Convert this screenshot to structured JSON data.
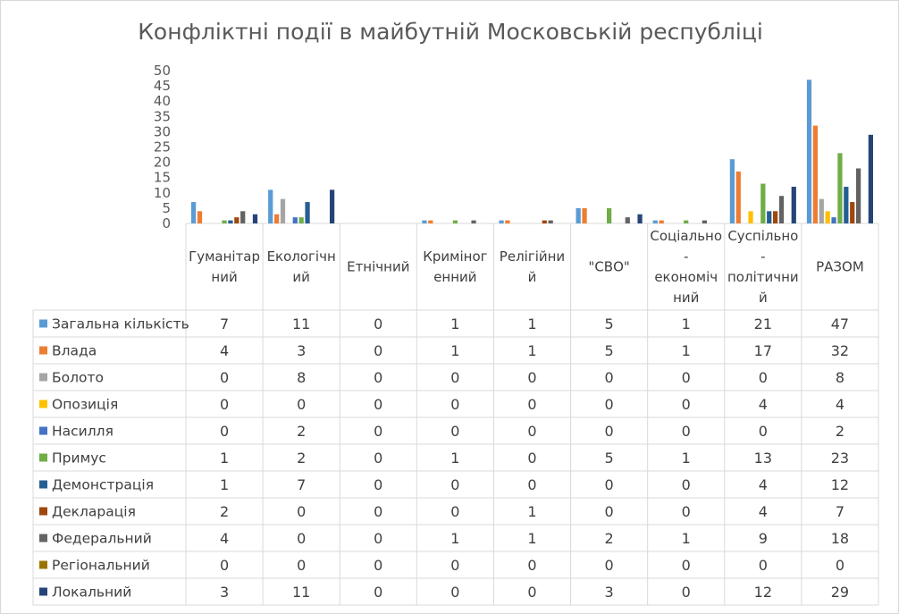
{
  "chart_data": {
    "type": "bar",
    "title": "Конфліктні події в майбутній Московській республіці",
    "xlabel": "",
    "ylabel": "",
    "ylim": [
      0,
      50
    ],
    "yticks": [
      0,
      5,
      10,
      15,
      20,
      25,
      30,
      35,
      40,
      45,
      50
    ],
    "grid": false,
    "legend": "data-table",
    "categories": [
      [
        "Гуманітар",
        "ний"
      ],
      [
        "Екологічн",
        "ий"
      ],
      [
        "Етнічний"
      ],
      [
        "Криміног",
        "енний"
      ],
      [
        "Релігійни",
        "й"
      ],
      [
        "\"СВО\""
      ],
      [
        "Соціально",
        "-",
        "економіч",
        "ний"
      ],
      [
        "Суспільно",
        "-",
        "політични",
        "й"
      ],
      [
        "РАЗОМ"
      ]
    ],
    "series": [
      {
        "name": "Загальна кількість",
        "color": "#5b9bd5",
        "values": [
          7,
          11,
          0,
          1,
          1,
          5,
          1,
          21,
          47
        ]
      },
      {
        "name": "Влада",
        "color": "#ed7d31",
        "values": [
          4,
          3,
          0,
          1,
          1,
          5,
          1,
          17,
          32
        ]
      },
      {
        "name": "Болото",
        "color": "#a5a5a5",
        "values": [
          0,
          8,
          0,
          0,
          0,
          0,
          0,
          0,
          8
        ]
      },
      {
        "name": "Опозиція",
        "color": "#ffc000",
        "values": [
          0,
          0,
          0,
          0,
          0,
          0,
          0,
          4,
          4
        ]
      },
      {
        "name": "Насилля",
        "color": "#4472c4",
        "values": [
          0,
          2,
          0,
          0,
          0,
          0,
          0,
          0,
          2
        ]
      },
      {
        "name": "Примус",
        "color": "#70ad47",
        "values": [
          1,
          2,
          0,
          1,
          0,
          5,
          1,
          13,
          23
        ]
      },
      {
        "name": "Демонстрація",
        "color": "#255e91",
        "values": [
          1,
          7,
          0,
          0,
          0,
          0,
          0,
          4,
          12
        ]
      },
      {
        "name": "Декларація",
        "color": "#9e480e",
        "values": [
          2,
          0,
          0,
          0,
          1,
          0,
          0,
          4,
          7
        ]
      },
      {
        "name": "Федеральний",
        "color": "#636363",
        "values": [
          4,
          0,
          0,
          1,
          1,
          2,
          1,
          9,
          18
        ]
      },
      {
        "name": "Регіональний",
        "color": "#997300",
        "values": [
          0,
          0,
          0,
          0,
          0,
          0,
          0,
          0,
          0
        ]
      },
      {
        "name": "Локальний",
        "color": "#264478",
        "values": [
          3,
          11,
          0,
          0,
          0,
          3,
          0,
          12,
          29
        ]
      }
    ]
  }
}
